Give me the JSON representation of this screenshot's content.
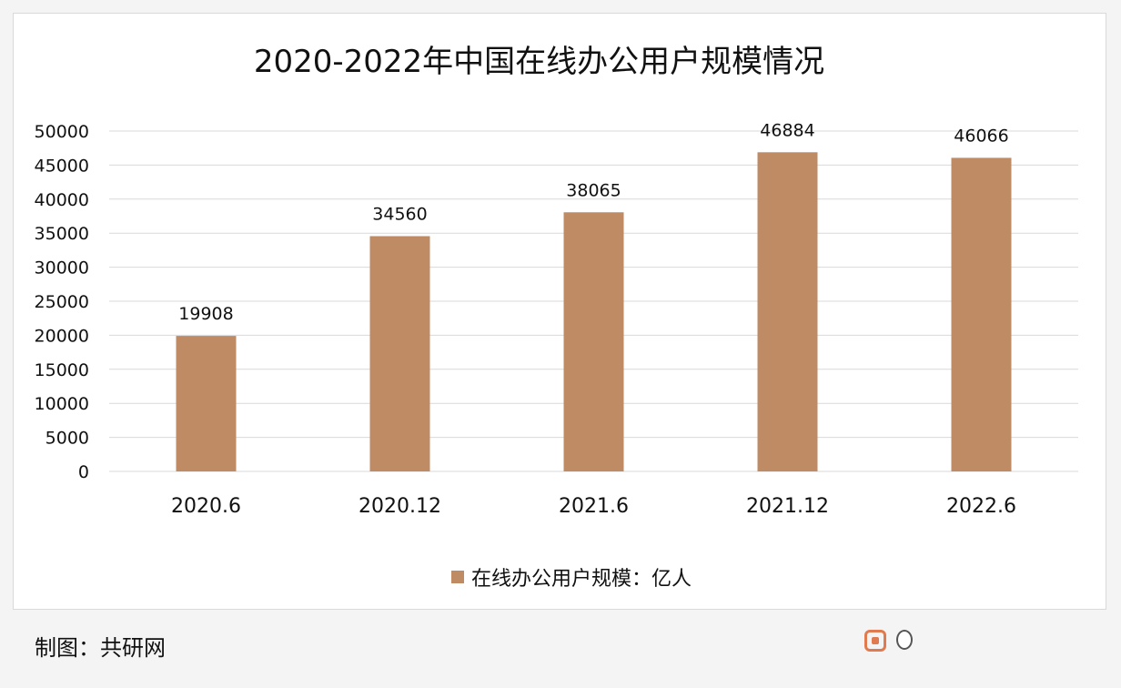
{
  "chart_data": {
    "type": "bar",
    "title": "2020-2022年中国在线办公用户规模情况",
    "categories": [
      "2020.6",
      "2020.12",
      "2021.6",
      "2021.12",
      "2022.6"
    ],
    "series": [
      {
        "name": "在线办公用户规模：亿人",
        "values": [
          19908,
          34560,
          38065,
          46884,
          46066
        ]
      }
    ],
    "data_labels": [
      "19908",
      "34560",
      "38065",
      "46884",
      "46066"
    ],
    "y_ticks": [
      "0",
      "5000",
      "10000",
      "15000",
      "20000",
      "25000",
      "30000",
      "35000",
      "40000",
      "45000",
      "50000"
    ],
    "ylim": [
      0,
      50000
    ],
    "grid": true,
    "legend_position": "bottom",
    "xlabel": "",
    "ylabel": ""
  },
  "colors": {
    "bar": "#bf8b65",
    "grid": "#d9d9d9",
    "text": "#111111"
  },
  "footer": {
    "source": "制图：共研网"
  }
}
